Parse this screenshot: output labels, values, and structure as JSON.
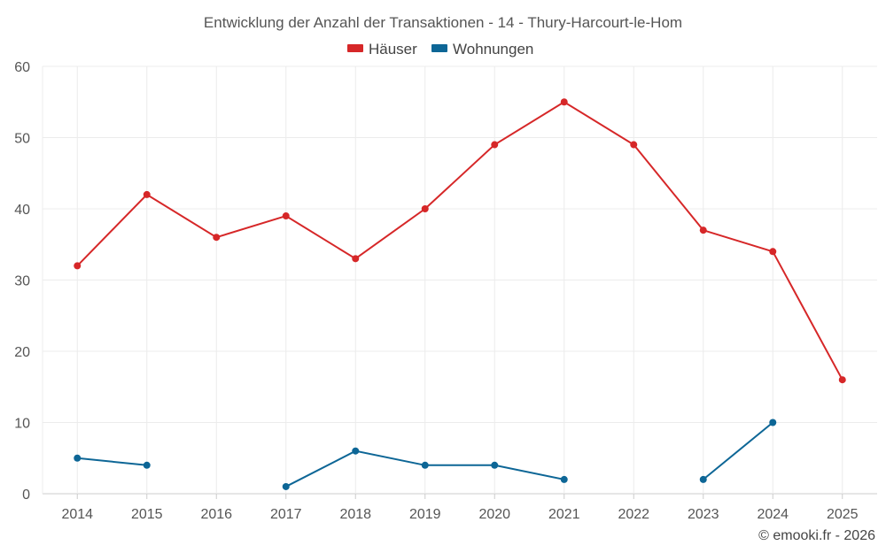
{
  "chart_data": {
    "type": "line",
    "title": "Entwicklung der Anzahl der Transaktionen - 14 - Thury-Harcourt-le-Hom",
    "categories": [
      "2014",
      "2015",
      "2016",
      "2017",
      "2018",
      "2019",
      "2020",
      "2021",
      "2022",
      "2023",
      "2024",
      "2025"
    ],
    "series": [
      {
        "name": "Häuser",
        "color": "#d62728",
        "values": [
          32,
          42,
          36,
          39,
          33,
          40,
          49,
          55,
          49,
          37,
          34,
          16
        ]
      },
      {
        "name": "Wohnungen",
        "color": "#0d6696",
        "values": [
          5,
          4,
          null,
          1,
          6,
          4,
          4,
          2,
          null,
          2,
          10,
          null
        ]
      }
    ],
    "ylim": [
      0,
      60
    ],
    "yticks": [
      0,
      10,
      20,
      30,
      40,
      50,
      60
    ],
    "xlabel": "",
    "ylabel": "",
    "grid": true,
    "legend_position": "top-center"
  },
  "credit": "© emooki.fr - 2026"
}
